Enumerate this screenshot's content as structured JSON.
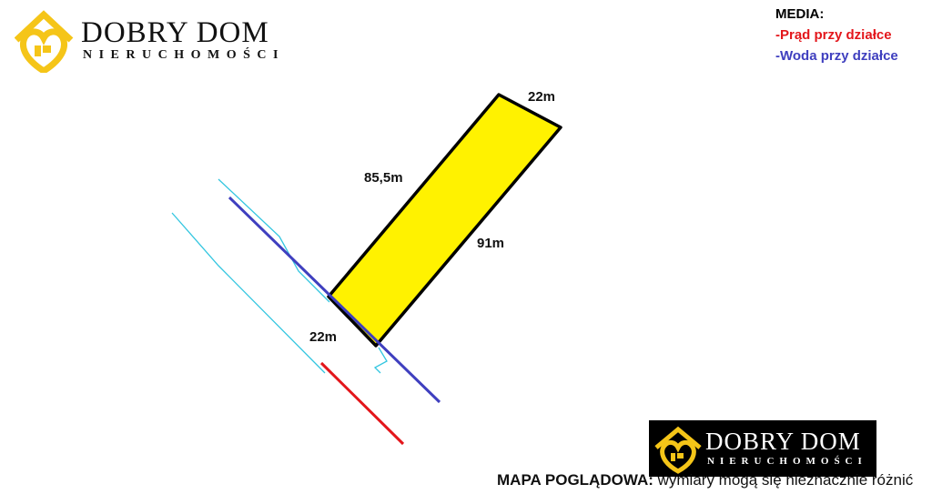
{
  "logo": {
    "name": "DOBRY DOM",
    "subtitle": "NIERUCHOMOŚCI"
  },
  "media": {
    "title": "MEDIA:",
    "power": "-Prąd przy działce",
    "water": "-Woda przy działce"
  },
  "dimensions": {
    "top": "22m",
    "left_side": "85,5m",
    "right_side": "91m",
    "bottom": "22m"
  },
  "note": {
    "label": "MAPA POGLĄDOWA:",
    "text": " wymiary mogą się nieznacznie różnić"
  },
  "colors": {
    "plot_fill": "#fff200",
    "power_line": "#e3161b",
    "water_line": "#3f3fbf",
    "road_lines": "#33c6e0",
    "logo_yellow": "#f5c518"
  }
}
